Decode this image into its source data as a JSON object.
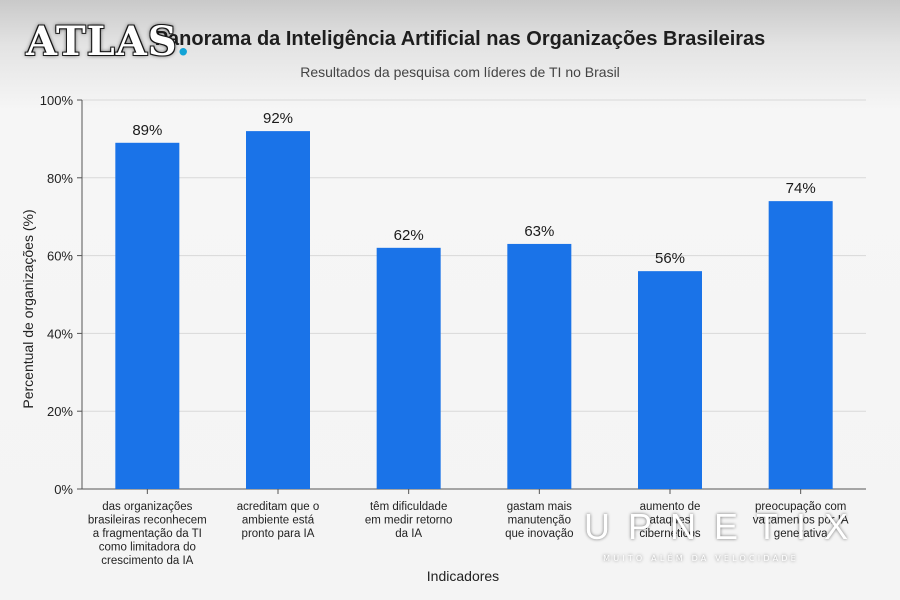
{
  "chart_data": {
    "type": "bar",
    "title": "Panorama da Inteligência Artificial nas Organizações Brasileiras",
    "subtitle": "Resultados da pesquisa com líderes de TI no Brasil",
    "xlabel": "Indicadores",
    "ylabel": "Percentual de organizações (%)",
    "ylim": [
      0,
      100
    ],
    "yticks": [
      0,
      20,
      40,
      60,
      80,
      100
    ],
    "ytick_labels": [
      "0%",
      "20%",
      "40%",
      "60%",
      "80%",
      "100%"
    ],
    "grid": true,
    "bar_color": "#1a73e8",
    "categories": [
      "das organizações brasileiras reconhecem a fragmentação da TI como limitadora do crescimento da IA",
      "acreditam que o ambiente está pronto para IA",
      "têm dificuldade em medir retorno da IA",
      "gastam mais manutenção que inovação",
      "aumento de ataques cibernéticos",
      "preocupação com vazamentos por IA generativa"
    ],
    "category_lines": [
      [
        "das organizações",
        "brasileiras reconhecem",
        "a fragmentação da TI",
        "como limitadora do",
        "crescimento da IA"
      ],
      [
        "acreditam que o",
        "ambiente está",
        "pronto para IA"
      ],
      [
        "têm dificuldade",
        "em medir retorno",
        "da IA"
      ],
      [
        "gastam mais",
        "manutenção",
        "que inovação"
      ],
      [
        "aumento de",
        "ataques",
        "cibernéticos"
      ],
      [
        "preocupação com",
        "vazamentos por IA",
        "generativa"
      ]
    ],
    "values": [
      89,
      92,
      62,
      63,
      56,
      74
    ],
    "value_labels": [
      "89%",
      "92%",
      "62%",
      "63%",
      "56%",
      "74%"
    ]
  },
  "watermarks": {
    "atlas": "ATLAS",
    "atlas_dot": ".",
    "upnetix": "UPNETIX",
    "upnetix_tagline": "MUITO ALÉM DA VELOCIDADE"
  }
}
